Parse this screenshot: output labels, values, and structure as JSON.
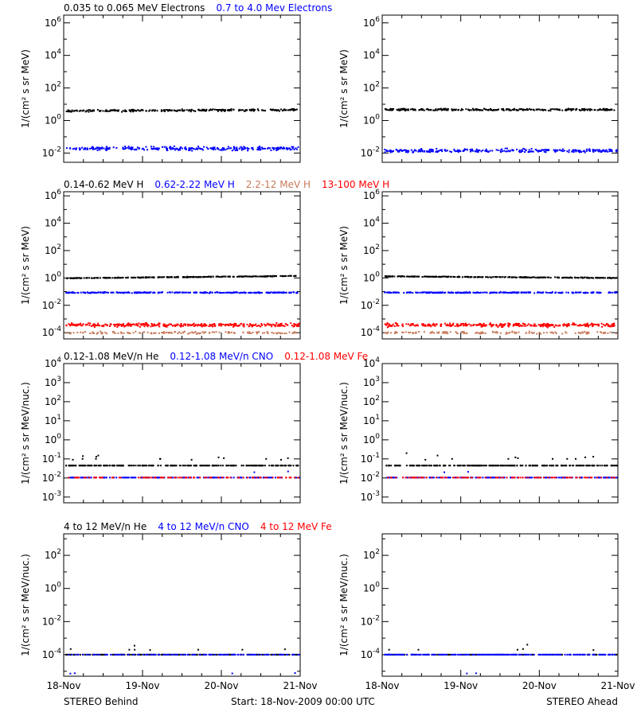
{
  "colors": {
    "black": "#000000",
    "blue": "#0000ff",
    "tan": "#c87a5a",
    "red": "#ff0000"
  },
  "footer": {
    "left": "STEREO Behind",
    "center": "Start: 18-Nov-2009 00:00 UTC",
    "right": "STEREO Ahead"
  },
  "chart_data": [
    {
      "type": "scatter",
      "panel": "electrons-behind",
      "y_scale": "log",
      "x": {
        "start": "18-Nov-2009",
        "end": "21-Nov-2009",
        "ticks": []
      },
      "ylim": [
        0.0027,
        3000000
      ],
      "ylabel": "1/(cm² s sr MeV)",
      "yticks": [
        {
          "value": 0.01,
          "base": "10",
          "exp": "-2"
        },
        {
          "value": 1,
          "base": "10",
          "exp": "0"
        },
        {
          "value": 100,
          "base": "10",
          "exp": "2"
        },
        {
          "value": 10000,
          "base": "10",
          "exp": "4"
        },
        {
          "value": 1000000,
          "base": "10",
          "exp": "6"
        }
      ],
      "legend": [
        {
          "text": "0.035 to 0.065 MeV Electrons",
          "color": "black"
        },
        {
          "text": "0.7 to 4.0 Mev Electrons",
          "color": "blue"
        }
      ],
      "series": [
        {
          "name": "0.035 to 0.065 MeV Electrons",
          "color": "black",
          "level": 4.2,
          "start": 3.9,
          "end": 4.5,
          "spread": 0.09,
          "density": 1,
          "outliers": []
        },
        {
          "name": "0.7 to 4.0 Mev Electrons",
          "color": "blue",
          "level": 0.019,
          "start": 0.019,
          "end": 0.019,
          "spread": 0.16,
          "density": 1,
          "outliers": []
        }
      ]
    },
    {
      "type": "scatter",
      "panel": "electrons-ahead",
      "y_scale": "log",
      "x": {
        "start": "18-Nov-2009",
        "end": "21-Nov-2009",
        "ticks": []
      },
      "ylim": [
        0.0027,
        3000000
      ],
      "ylabel": "1/(cm² s sr MeV)",
      "yticks": [
        {
          "value": 0.01,
          "base": "10",
          "exp": "-2"
        },
        {
          "value": 1,
          "base": "10",
          "exp": "0"
        },
        {
          "value": 100,
          "base": "10",
          "exp": "2"
        },
        {
          "value": 10000,
          "base": "10",
          "exp": "4"
        },
        {
          "value": 1000000,
          "base": "10",
          "exp": "6"
        }
      ],
      "legend": [],
      "series": [
        {
          "name": "0.035 to 0.065 MeV Electrons",
          "color": "black",
          "level": 4.6,
          "start": 4.6,
          "end": 4.6,
          "spread": 0.09,
          "density": 1,
          "outliers": []
        },
        {
          "name": "0.7 to 4.0 Mev Electrons",
          "color": "blue",
          "level": 0.014,
          "start": 0.014,
          "end": 0.014,
          "spread": 0.16,
          "density": 1,
          "outliers": []
        }
      ]
    },
    {
      "type": "scatter",
      "panel": "protons-behind",
      "y_scale": "log",
      "x": {
        "start": "18-Nov-2009",
        "end": "21-Nov-2009",
        "ticks": []
      },
      "ylim": [
        3.5e-05,
        2000000
      ],
      "ylabel": "1/(cm² s sr MeV)",
      "yticks": [
        {
          "value": 0.0001,
          "base": "10",
          "exp": "-4"
        },
        {
          "value": 0.01,
          "base": "10",
          "exp": "-2"
        },
        {
          "value": 1,
          "base": "10",
          "exp": "0"
        },
        {
          "value": 100,
          "base": "10",
          "exp": "2"
        },
        {
          "value": 10000,
          "base": "10",
          "exp": "4"
        },
        {
          "value": 1000000,
          "base": "10",
          "exp": "6"
        }
      ],
      "legend": [
        {
          "text": "0.14-0.62 MeV H",
          "color": "black"
        },
        {
          "text": "0.62-2.22 MeV H",
          "color": "blue"
        },
        {
          "text": "2.2-12 MeV H",
          "color": "tan"
        },
        {
          "text": "13-100 MeV H",
          "color": "red"
        }
      ],
      "series": [
        {
          "name": "0.14-0.62 MeV H",
          "color": "black",
          "level": 1.1,
          "start": 0.95,
          "end": 1.4,
          "spread": 0.04,
          "density": 1,
          "outliers": []
        },
        {
          "name": "0.62-2.22 MeV H",
          "color": "blue",
          "level": 0.085,
          "start": 0.085,
          "end": 0.085,
          "spread": 0.05,
          "density": 1,
          "outliers": []
        },
        {
          "name": "2.2-12 MeV H",
          "color": "tan",
          "level": 0.0001,
          "start": 0.0001,
          "end": 0.0001,
          "spread": 0.12,
          "density": 0.5,
          "outliers": []
        },
        {
          "name": "13-100 MeV H",
          "color": "red",
          "level": 0.00036,
          "start": 0.00036,
          "end": 0.00036,
          "spread": 0.18,
          "density": 1.2,
          "outliers": []
        }
      ]
    },
    {
      "type": "scatter",
      "panel": "protons-ahead",
      "y_scale": "log",
      "x": {
        "start": "18-Nov-2009",
        "end": "21-Nov-2009",
        "ticks": []
      },
      "ylim": [
        3.5e-05,
        2000000
      ],
      "ylabel": "1/(cm² s sr MeV)",
      "yticks": [
        {
          "value": 0.0001,
          "base": "10",
          "exp": "-4"
        },
        {
          "value": 0.01,
          "base": "10",
          "exp": "-2"
        },
        {
          "value": 1,
          "base": "10",
          "exp": "0"
        },
        {
          "value": 100,
          "base": "10",
          "exp": "2"
        },
        {
          "value": 10000,
          "base": "10",
          "exp": "4"
        },
        {
          "value": 1000000,
          "base": "10",
          "exp": "6"
        }
      ],
      "legend": [],
      "series": [
        {
          "name": "0.14-0.62 MeV H",
          "color": "black",
          "level": 1.2,
          "start": 1.3,
          "end": 1.0,
          "spread": 0.04,
          "density": 1,
          "outliers": []
        },
        {
          "name": "0.62-2.22 MeV H",
          "color": "blue",
          "level": 0.085,
          "start": 0.085,
          "end": 0.085,
          "spread": 0.05,
          "density": 1,
          "outliers": []
        },
        {
          "name": "2.2-12 MeV H",
          "color": "tan",
          "level": 0.0001,
          "start": 0.0001,
          "end": 0.0001,
          "spread": 0.12,
          "density": 0.5,
          "outliers": []
        },
        {
          "name": "13-100 MeV H",
          "color": "red",
          "level": 0.00036,
          "start": 0.00036,
          "end": 0.00036,
          "spread": 0.18,
          "density": 1.2,
          "outliers": []
        }
      ]
    },
    {
      "type": "scatter",
      "panel": "ions-low-behind",
      "y_scale": "log",
      "x": {
        "start": "18-Nov-2009",
        "end": "21-Nov-2009",
        "ticks": []
      },
      "ylim": [
        0.0005,
        10000
      ],
      "ylabel": "1/(cm² s sr MeV/nuc.)",
      "yticks": [
        {
          "value": 0.001,
          "base": "10",
          "exp": "-3"
        },
        {
          "value": 0.01,
          "base": "10",
          "exp": "-2"
        },
        {
          "value": 0.1,
          "base": "10",
          "exp": "-1"
        },
        {
          "value": 1,
          "base": "10",
          "exp": "0"
        },
        {
          "value": 10,
          "base": "10",
          "exp": "1"
        },
        {
          "value": 100,
          "base": "10",
          "exp": "2"
        },
        {
          "value": 1000,
          "base": "10",
          "exp": "3"
        },
        {
          "value": 10000,
          "base": "10",
          "exp": "4"
        }
      ],
      "legend": [
        {
          "text": "0.12-1.08 MeV/n He",
          "color": "black"
        },
        {
          "text": "0.12-1.08 MeV/n CNO",
          "color": "blue"
        },
        {
          "text": "0.12-1.08 MeV Fe",
          "color": "red"
        }
      ],
      "series": [
        {
          "name": "0.12-1.08 MeV/n He",
          "color": "black",
          "level": 0.045,
          "start": 0.045,
          "end": 0.045,
          "spread": 0,
          "density": 0.9,
          "outliers": [
            0.09,
            0.11,
            0.1,
            0.12,
            0.1,
            0.14,
            0.09,
            0.1,
            0.13,
            0.11,
            0.1,
            0.15,
            0.09,
            0.1
          ]
        },
        {
          "name": "0.12-1.08 MeV/n CNO",
          "color": "blue",
          "level": 0.0105,
          "start": 0.0105,
          "end": 0.0105,
          "spread": 0,
          "density": 0.6,
          "outliers": [
            0.022,
            0.02
          ]
        },
        {
          "name": "0.12-1.08 MeV Fe",
          "color": "red",
          "level": 0.0105,
          "start": 0.0105,
          "end": 0.0105,
          "spread": 0,
          "density": 0.35,
          "outliers": []
        }
      ]
    },
    {
      "type": "scatter",
      "panel": "ions-low-ahead",
      "y_scale": "log",
      "x": {
        "start": "18-Nov-2009",
        "end": "21-Nov-2009",
        "ticks": []
      },
      "ylim": [
        0.0005,
        10000
      ],
      "ylabel": "1/(cm² s sr MeV/nuc.)",
      "yticks": [
        {
          "value": 0.001,
          "base": "10",
          "exp": "-3"
        },
        {
          "value": 0.01,
          "base": "10",
          "exp": "-2"
        },
        {
          "value": 0.1,
          "base": "10",
          "exp": "-1"
        },
        {
          "value": 1,
          "base": "10",
          "exp": "0"
        },
        {
          "value": 10,
          "base": "10",
          "exp": "1"
        },
        {
          "value": 100,
          "base": "10",
          "exp": "2"
        },
        {
          "value": 1000,
          "base": "10",
          "exp": "3"
        },
        {
          "value": 10000,
          "base": "10",
          "exp": "4"
        }
      ],
      "legend": [],
      "series": [
        {
          "name": "0.12-1.08 MeV/n He",
          "color": "black",
          "level": 0.045,
          "start": 0.045,
          "end": 0.045,
          "spread": 0,
          "density": 0.9,
          "outliers": [
            0.1,
            0.12,
            0.2,
            0.1,
            0.11,
            0.13,
            0.1,
            0.15,
            0.09,
            0.1,
            0.12,
            0.1
          ]
        },
        {
          "name": "0.12-1.08 MeV/n CNO",
          "color": "blue",
          "level": 0.0105,
          "start": 0.0105,
          "end": 0.0105,
          "spread": 0,
          "density": 0.6,
          "outliers": [
            0.02,
            0.021
          ]
        },
        {
          "name": "0.12-1.08 MeV Fe",
          "color": "red",
          "level": 0.0105,
          "start": 0.0105,
          "end": 0.0105,
          "spread": 0,
          "density": 0.35,
          "outliers": []
        }
      ]
    },
    {
      "type": "scatter",
      "panel": "ions-high-behind",
      "y_scale": "log",
      "x": {
        "start": "18-Nov-2009",
        "end": "21-Nov-2009",
        "ticks": [
          "18-Nov",
          "19-Nov",
          "20-Nov",
          "21-Nov"
        ]
      },
      "ylim": [
        5e-06,
        2000
      ],
      "ylabel": "1/(cm² s sr MeV/nuc.)",
      "yticks": [
        {
          "value": 0.0001,
          "base": "10",
          "exp": "-4"
        },
        {
          "value": 0.01,
          "base": "10",
          "exp": "-2"
        },
        {
          "value": 1,
          "base": "10",
          "exp": "0"
        },
        {
          "value": 100,
          "base": "10",
          "exp": "2"
        }
      ],
      "legend": [
        {
          "text": "4 to 12 MeV/n He",
          "color": "black"
        },
        {
          "text": "4 to 12 MeV/n CNO",
          "color": "blue"
        },
        {
          "text": "4 to 12 MeV Fe",
          "color": "red"
        }
      ],
      "series": [
        {
          "name": "4 to 12 MeV/n He",
          "color": "black",
          "level": 0.0001,
          "start": 0.0001,
          "end": 0.0001,
          "spread": 0,
          "density": 0.7,
          "outliers": [
            0.0002,
            0.00022,
            0.00019,
            0.0002,
            0.00021,
            0.0002,
            0.0002,
            0.00035
          ]
        },
        {
          "name": "4 to 12 MeV/n CNO",
          "color": "blue",
          "level": 0.0001,
          "start": 0.0001,
          "end": 0.0001,
          "spread": 0,
          "density": 0.5,
          "outliers": [
            7.5e-06,
            7.2e-06,
            7.8e-06,
            7.4e-06
          ]
        },
        {
          "name": "4 to 12 MeV Fe",
          "color": "red",
          "level": 0.0001,
          "start": 0.0001,
          "end": 0.0001,
          "spread": 0,
          "density": 0,
          "outliers": []
        }
      ]
    },
    {
      "type": "scatter",
      "panel": "ions-high-ahead",
      "y_scale": "log",
      "x": {
        "start": "18-Nov-2009",
        "end": "21-Nov-2009",
        "ticks": [
          "18-Nov",
          "19-Nov",
          "20-Nov",
          "21-Nov"
        ]
      },
      "ylim": [
        5e-06,
        2000
      ],
      "ylabel": "1/(cm² s sr MeV/nuc.)",
      "yticks": [
        {
          "value": 0.0001,
          "base": "10",
          "exp": "-4"
        },
        {
          "value": 0.01,
          "base": "10",
          "exp": "-2"
        },
        {
          "value": 1,
          "base": "10",
          "exp": "0"
        },
        {
          "value": 100,
          "base": "10",
          "exp": "2"
        }
      ],
      "legend": [],
      "series": [
        {
          "name": "4 to 12 MeV/n He",
          "color": "black",
          "level": 0.0001,
          "start": 0.0001,
          "end": 0.0001,
          "spread": 0,
          "density": 0.4,
          "outliers": [
            0.0002,
            0.00022,
            0.0004,
            0.0002,
            0.0002,
            0.00019
          ]
        },
        {
          "name": "4 to 12 MeV/n CNO",
          "color": "blue",
          "level": 0.0001,
          "start": 0.0001,
          "end": 0.0001,
          "spread": 0,
          "density": 0.9,
          "outliers": [
            7.5e-06,
            7.3e-06
          ]
        },
        {
          "name": "4 to 12 MeV Fe",
          "color": "red",
          "level": 0.0001,
          "start": 0.0001,
          "end": 0.0001,
          "spread": 0,
          "density": 0,
          "outliers": []
        }
      ]
    }
  ]
}
